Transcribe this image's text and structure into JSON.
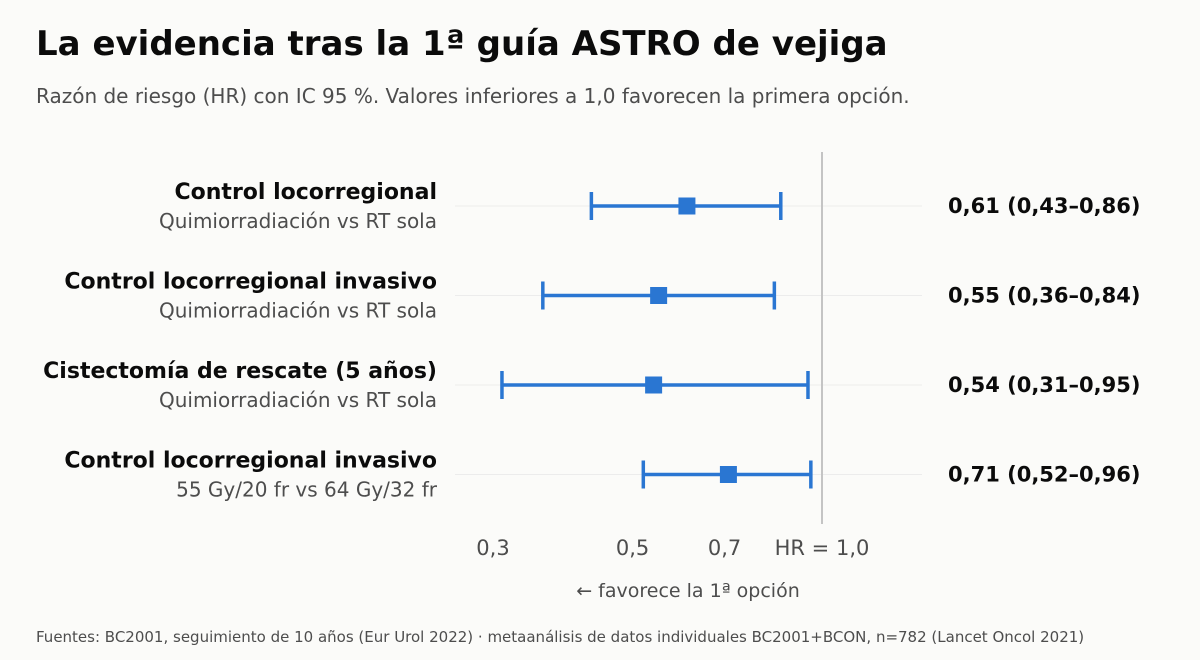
{
  "title": "La evidencia tras la 1ª guía ASTRO de vejiga",
  "subtitle": "Razón de riesgo (HR) con IC 95 %. Valores inferiores a 1,0 favorecen la primera opción.",
  "footer": "Fuentes: BC2001, seguimiento de 10 años (Eur Urol 2022) · metaanálisis de datos individuales BC2001+BCON, n=782 (Lancet Oncol 2021)",
  "colors": {
    "accent": "#2a76d2",
    "refline": "#c4c4c4",
    "rowline": "#ececec"
  },
  "chart_data": {
    "type": "forest",
    "xscale": "log",
    "xlim": [
      0.27,
      1.3
    ],
    "reference": 1.0,
    "reference_label": "HR = 1,0",
    "xticks": [
      {
        "value": 0.3,
        "label": "0,3"
      },
      {
        "value": 0.5,
        "label": "0,5"
      },
      {
        "value": 0.7,
        "label": "0,7"
      }
    ],
    "xlabel": "←  favorece la 1ª opción",
    "rows": [
      {
        "label": "Control locorregional",
        "comparison": "Quimiorradiación vs RT sola",
        "hr": 0.61,
        "lo": 0.43,
        "hi": 0.86,
        "text": "0,61  (0,43–0,86)"
      },
      {
        "label": "Control locorregional invasivo",
        "comparison": "Quimiorradiación vs RT sola",
        "hr": 0.55,
        "lo": 0.36,
        "hi": 0.84,
        "text": "0,55  (0,36–0,84)"
      },
      {
        "label": "Cistectomía de rescate (5 años)",
        "comparison": "Quimiorradiación vs RT sola",
        "hr": 0.54,
        "lo": 0.31,
        "hi": 0.95,
        "text": "0,54  (0,31–0,95)"
      },
      {
        "label": "Control locorregional invasivo",
        "comparison": "55 Gy/20 fr vs 64 Gy/32 fr",
        "hr": 0.71,
        "lo": 0.52,
        "hi": 0.96,
        "text": "0,71  (0,52–0,96)"
      }
    ]
  }
}
